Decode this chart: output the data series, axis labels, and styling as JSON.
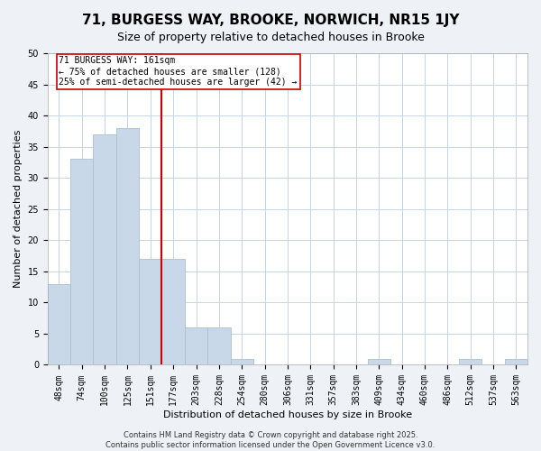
{
  "title": "71, BURGESS WAY, BROOKE, NORWICH, NR15 1JY",
  "subtitle": "Size of property relative to detached houses in Brooke",
  "xlabel": "Distribution of detached houses by size in Brooke",
  "ylabel": "Number of detached properties",
  "categories": [
    "48sqm",
    "74sqm",
    "100sqm",
    "125sqm",
    "151sqm",
    "177sqm",
    "203sqm",
    "228sqm",
    "254sqm",
    "280sqm",
    "306sqm",
    "331sqm",
    "357sqm",
    "383sqm",
    "409sqm",
    "434sqm",
    "460sqm",
    "486sqm",
    "512sqm",
    "537sqm",
    "563sqm"
  ],
  "values": [
    13,
    33,
    37,
    38,
    17,
    17,
    6,
    6,
    1,
    0,
    0,
    0,
    0,
    0,
    1,
    0,
    0,
    0,
    1,
    0,
    1
  ],
  "bar_color": "#c8d8e8",
  "bar_edge_color": "#a8c0d0",
  "vline_x_idx": 4,
  "vline_color": "#cc0000",
  "annotation_title": "71 BURGESS WAY: 161sqm",
  "annotation_line1": "← 75% of detached houses are smaller (128)",
  "annotation_line2": "25% of semi-detached houses are larger (42) →",
  "annotation_box_color": "#ffffff",
  "annotation_box_edge": "#cc0000",
  "ylim": [
    0,
    50
  ],
  "yticks": [
    0,
    5,
    10,
    15,
    20,
    25,
    30,
    35,
    40,
    45,
    50
  ],
  "footer1": "Contains HM Land Registry data © Crown copyright and database right 2025.",
  "footer2": "Contains public sector information licensed under the Open Government Licence v3.0.",
  "bg_color": "#eef2f7",
  "plot_bg_color": "#ffffff",
  "grid_color": "#c5d5e5",
  "title_fontsize": 11,
  "subtitle_fontsize": 9,
  "axis_label_fontsize": 8,
  "tick_fontsize": 7,
  "footer_fontsize": 6
}
